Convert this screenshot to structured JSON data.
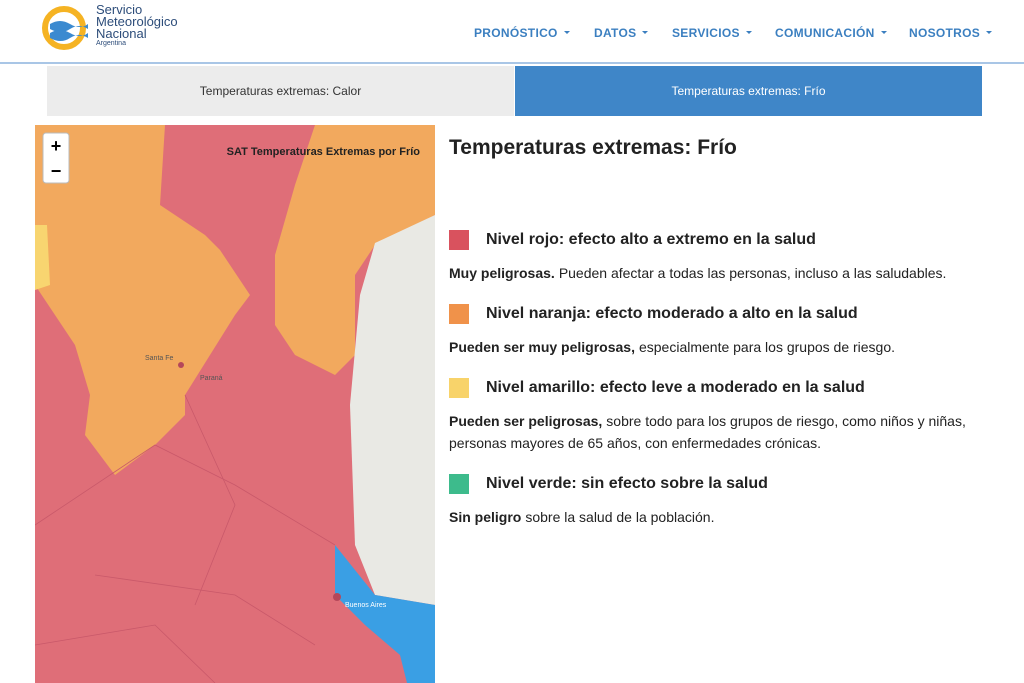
{
  "header": {
    "logo": {
      "line1": "Servicio",
      "line2": "Meteorológico",
      "line3": "Nacional",
      "line4": "Argentina"
    },
    "nav": [
      "PRONÓSTICO",
      "DATOS",
      "SERVICIOS",
      "COMUNICACIÓN",
      "NOSOTROS"
    ]
  },
  "tabs": [
    "Temperaturas extremas: Calor",
    "Temperaturas extremas: Frío"
  ],
  "map": {
    "title": "SAT Temperaturas Extremas por Frío",
    "zoom_in": "+",
    "zoom_out": "−",
    "labels": [
      "Santa Fe",
      "Paraná",
      "Buenos Aires"
    ]
  },
  "content": {
    "title": "Temperaturas extremas: Frío",
    "levels": [
      {
        "color": "#d9525e",
        "heading": "Nivel rojo: efecto alto a extremo en la salud",
        "bold": "Muy peligrosas.",
        "text": "Pueden afectar a todas las personas, incluso a las saludables."
      },
      {
        "color": "#f0924a",
        "heading": "Nivel naranja: efecto moderado a alto en la salud",
        "bold": "Pueden ser muy peligrosas,",
        "text": "especialmente para los grupos de riesgo."
      },
      {
        "color": "#f8d36a",
        "heading": "Nivel amarillo: efecto leve a moderado en la salud",
        "bold": "Pueden ser peligrosas,",
        "text": "sobre todo para los grupos de riesgo, como niños y niñas, personas mayores de 65 años, con enfermedades crónicas."
      },
      {
        "color": "#3dbb8c",
        "heading": "Nivel verde: sin efecto sobre la salud",
        "bold": "Sin peligro",
        "text": "sobre la salud de la población."
      }
    ]
  }
}
